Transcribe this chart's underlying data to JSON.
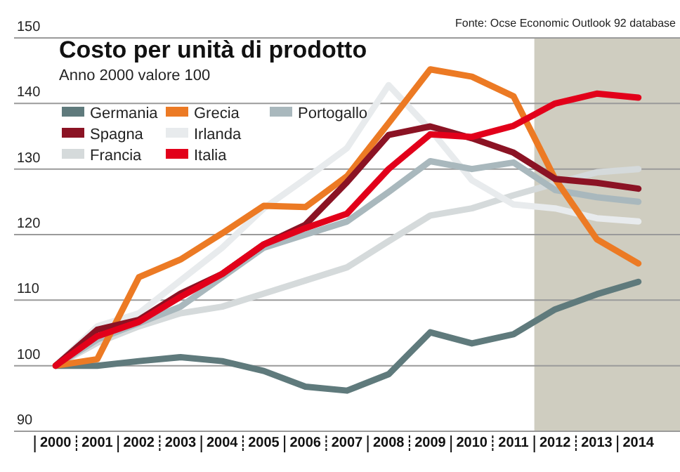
{
  "chart_data": {
    "type": "line",
    "title": "Costo per unità di prodotto",
    "subtitle": "Anno 2000 valore 100",
    "annotations": [
      "Fonte: Ocse Economic Outlook 92 database"
    ],
    "x": [
      2000,
      2001,
      2002,
      2003,
      2004,
      2005,
      2006,
      2007,
      2008,
      2009,
      2010,
      2011,
      2012,
      2013,
      2014
    ],
    "xlim": [
      1999,
      2015
    ],
    "xticks": [
      2000,
      2001,
      2002,
      2003,
      2004,
      2005,
      2006,
      2007,
      2008,
      2009,
      2010,
      2011,
      2012,
      2013,
      2014
    ],
    "ylim": [
      90,
      150
    ],
    "yticks": [
      90,
      100,
      110,
      120,
      130,
      140,
      150
    ],
    "grid": "y",
    "legend": "top left",
    "marker": "none",
    "line_style": "solid",
    "bands": [
      {
        "axis": "x",
        "from": 2011.5,
        "to": 2015,
        "color": "#cfcdc0"
      }
    ],
    "series": [
      {
        "name": "Germania",
        "color": "#5f7a7c",
        "values": [
          100,
          100,
          100.7,
          101.3,
          100.7,
          99.2,
          96.8,
          96.2,
          98.7,
          105.1,
          103.4,
          104.8,
          108.6,
          110.9,
          112.8
        ]
      },
      {
        "name": "Spagna",
        "color": "#8b1324",
        "values": [
          100,
          105.5,
          107,
          111,
          114,
          118.5,
          121.5,
          128,
          135.2,
          136.5,
          134.7,
          132.5,
          128.5,
          127.9,
          127
        ]
      },
      {
        "name": "Francia",
        "color": "#d5dadb",
        "values": [
          100,
          103.5,
          106,
          108,
          109,
          111,
          113,
          115,
          119,
          122.9,
          124,
          126,
          127.8,
          129.5,
          130
        ]
      },
      {
        "name": "Grecia",
        "color": "#ec7a24",
        "values": [
          100,
          101,
          113.5,
          116.2,
          120.2,
          124.4,
          124.2,
          128.9,
          137,
          145.2,
          144.1,
          141.1,
          128.5,
          119.3,
          115.6
        ]
      },
      {
        "name": "Irlanda",
        "color": "#e8ebed",
        "values": [
          100,
          106,
          108,
          113,
          118,
          124,
          128.5,
          133.2,
          142.8,
          136,
          128.3,
          124.6,
          124,
          122.5,
          122
        ]
      },
      {
        "name": "Italia",
        "color": "#e2001a",
        "values": [
          100,
          104.5,
          106.7,
          110.5,
          114,
          118.5,
          121,
          123.2,
          130,
          135.3,
          134.9,
          136.6,
          140,
          141.5,
          140.9
        ]
      },
      {
        "name": "Portogallo",
        "color": "#a9b8bd",
        "values": [
          100,
          104,
          106.5,
          109,
          113.5,
          118,
          120,
          122,
          126.5,
          131.2,
          130,
          131,
          126.8,
          125.7,
          125
        ]
      }
    ]
  }
}
